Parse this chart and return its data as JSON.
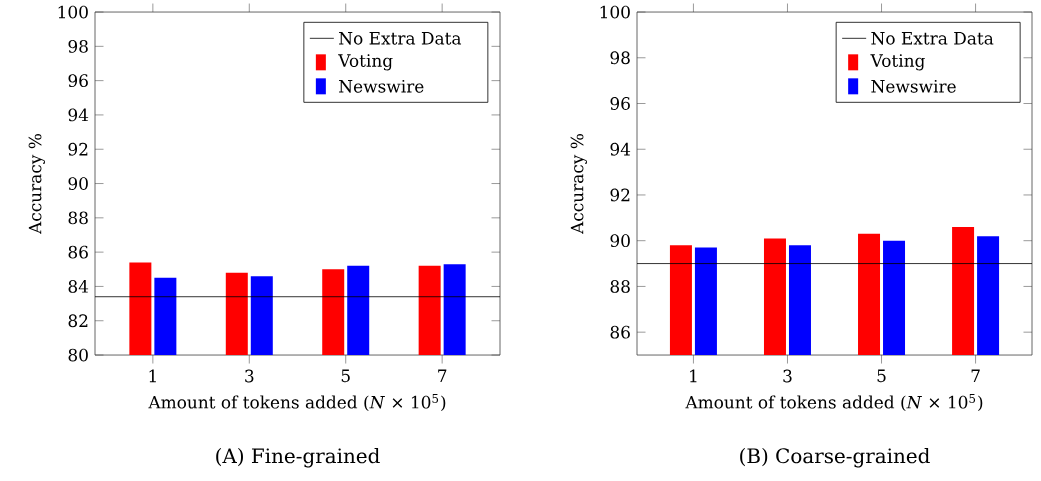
{
  "chart_data": [
    {
      "type": "bar",
      "categories": [
        "1",
        "3",
        "5",
        "7"
      ],
      "xlabel": "Amount of tokens added (*N* × 10$^{5}$)",
      "ylabel": "Accuracy %",
      "ylim": [
        80,
        100
      ],
      "yticks": [
        80,
        82,
        84,
        86,
        88,
        90,
        92,
        94,
        96,
        98,
        100
      ],
      "legend": "top right",
      "grid": false,
      "series": [
        {
          "name": "Voting",
          "color": "#ff0000",
          "values": [
            85.4,
            84.8,
            85.0,
            85.2
          ]
        },
        {
          "name": "Newswire",
          "color": "#0000ff",
          "values": [
            84.5,
            84.6,
            85.2,
            85.3
          ]
        }
      ],
      "ref_lines": [
        {
          "axis": "y",
          "value": 83.4,
          "label": "No Extra Data",
          "color": "#000000",
          "line_style": "solid"
        }
      ],
      "annotations": [
        "(A) Fine-grained"
      ]
    },
    {
      "type": "bar",
      "categories": [
        "1",
        "3",
        "5",
        "7"
      ],
      "xlabel": "Amount of tokens added (*N* × 10$^{5}$)",
      "ylabel": "Accuracy %",
      "ylim": [
        85,
        100
      ],
      "yticks": [
        86,
        88,
        90,
        92,
        94,
        96,
        98,
        100
      ],
      "legend": "top right",
      "grid": false,
      "series": [
        {
          "name": "Voting",
          "color": "#ff0000",
          "values": [
            89.8,
            90.1,
            90.3,
            90.6
          ]
        },
        {
          "name": "Newswire",
          "color": "#0000ff",
          "values": [
            89.7,
            89.8,
            90.0,
            90.2
          ]
        }
      ],
      "ref_lines": [
        {
          "axis": "y",
          "value": 89.0,
          "label": "No Extra Data",
          "color": "#000000",
          "line_style": "solid"
        }
      ],
      "annotations": [
        "(B) Coarse-grained"
      ]
    }
  ]
}
